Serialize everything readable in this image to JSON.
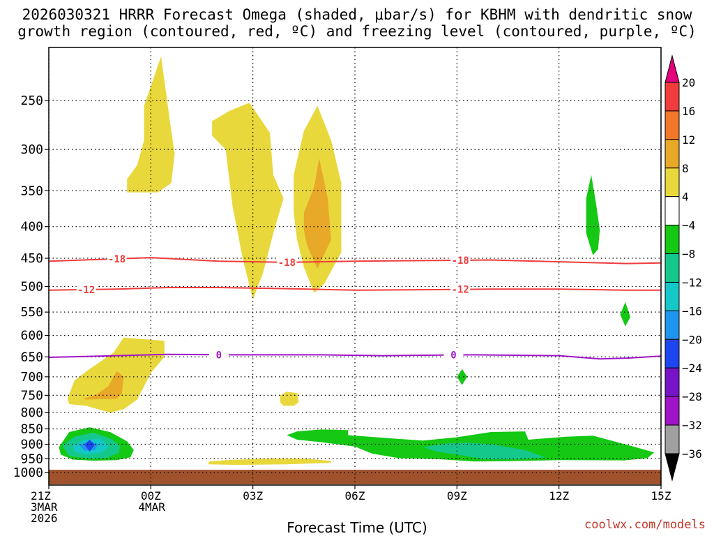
{
  "chart_data": {
    "type": "heatmap",
    "title_line1": "2026030321 HRRR Forecast Omega (shaded, μbar/s) for KBHM with dendritic snow",
    "title_line2": "growth region (contoured, red, ºC) and freezing level (contoured, purple, ºC)",
    "xlabel": "Forecast Time (UTC)",
    "credit": "coolwx.com/models",
    "x_ticks": [
      {
        "hour": 0,
        "line1": "21Z",
        "line2": "3MAR",
        "line3": "2026"
      },
      {
        "hour": 3,
        "line1": "00Z",
        "line2": "4MAR",
        "line3": ""
      },
      {
        "hour": 6,
        "line1": "03Z",
        "line2": "",
        "line3": ""
      },
      {
        "hour": 9,
        "line1": "06Z",
        "line2": "",
        "line3": ""
      },
      {
        "hour": 12,
        "line1": "09Z",
        "line2": "",
        "line3": ""
      },
      {
        "hour": 15,
        "line1": "12Z",
        "line2": "",
        "line3": ""
      },
      {
        "hour": 18,
        "line1": "15Z",
        "line2": "",
        "line3": ""
      }
    ],
    "y_ticks_hpa": [
      250,
      300,
      350,
      400,
      450,
      500,
      550,
      600,
      650,
      700,
      750,
      800,
      850,
      900,
      950,
      1000
    ],
    "xlim_hours": [
      0,
      18
    ],
    "ylim_hpa": [
      1000,
      200
    ],
    "colorbar": {
      "labels": [
        "20",
        "16",
        "12",
        "8",
        "4",
        "−4",
        "−8",
        "−12",
        "−16",
        "−20",
        "−24",
        "−28",
        "−32",
        "−36"
      ],
      "bins": [
        {
          "from": 20,
          "to": 24,
          "color": "#e4007c"
        },
        {
          "from": 16,
          "to": 20,
          "color": "#f03c3c"
        },
        {
          "from": 12,
          "to": 16,
          "color": "#f07828"
        },
        {
          "from": 8,
          "to": 12,
          "color": "#e8a828"
        },
        {
          "from": 4,
          "to": 8,
          "color": "#e8d83c"
        },
        {
          "from": -4,
          "to": 4,
          "color": "#ffffff"
        },
        {
          "from": -8,
          "to": -4,
          "color": "#14c814"
        },
        {
          "from": -12,
          "to": -8,
          "color": "#14c88c"
        },
        {
          "from": -16,
          "to": -12,
          "color": "#14c8c8"
        },
        {
          "from": -20,
          "to": -16,
          "color": "#1e96f0"
        },
        {
          "from": -24,
          "to": -20,
          "color": "#1e46f0"
        },
        {
          "from": -28,
          "to": -24,
          "color": "#7814c8"
        },
        {
          "from": -32,
          "to": -28,
          "color": "#a014c8"
        },
        {
          "from": -36,
          "to": -32,
          "color": "#a0a0a0"
        },
        {
          "from": -40,
          "to": -36,
          "color": "#000000"
        }
      ]
    },
    "omega_regions": [
      {
        "name": "upper-yellow-00z",
        "color": "#e8d83c",
        "points": [
          [
            2.3,
            350
          ],
          [
            2.3,
            335
          ],
          [
            2.6,
            318
          ],
          [
            2.8,
            290
          ],
          [
            2.8,
            255
          ],
          [
            3.3,
            212
          ],
          [
            3.6,
            280
          ],
          [
            3.7,
            305
          ],
          [
            3.6,
            340
          ],
          [
            3.2,
            352
          ],
          [
            2.3,
            352
          ]
        ]
      },
      {
        "name": "upper-yellow-03z",
        "color": "#e8d83c",
        "points": [
          [
            4.8,
            270
          ],
          [
            5.3,
            260
          ],
          [
            5.9,
            252
          ],
          [
            6.5,
            282
          ],
          [
            6.6,
            330
          ],
          [
            6.9,
            360
          ],
          [
            6.6,
            410
          ],
          [
            6.3,
            475
          ],
          [
            6.0,
            525
          ],
          [
            5.7,
            450
          ],
          [
            5.4,
            370
          ],
          [
            5.2,
            300
          ],
          [
            4.8,
            285
          ]
        ]
      },
      {
        "name": "upper-yellow-05z",
        "color": "#e8d83c",
        "points": [
          [
            7.2,
            330
          ],
          [
            7.5,
            280
          ],
          [
            7.9,
            255
          ],
          [
            8.3,
            290
          ],
          [
            8.6,
            340
          ],
          [
            8.6,
            440
          ],
          [
            8.1,
            495
          ],
          [
            7.8,
            512
          ],
          [
            7.5,
            465
          ],
          [
            7.3,
            420
          ],
          [
            7.2,
            380
          ]
        ]
      },
      {
        "name": "upper-orange-05z",
        "color": "#e8a828",
        "points": [
          [
            7.5,
            380
          ],
          [
            7.8,
            345
          ],
          [
            7.95,
            310
          ],
          [
            8.2,
            360
          ],
          [
            8.3,
            420
          ],
          [
            8.0,
            455
          ],
          [
            7.9,
            468
          ],
          [
            7.6,
            430
          ],
          [
            7.5,
            405
          ]
        ]
      },
      {
        "name": "green-12z-upper",
        "color": "#14c814",
        "points": [
          [
            15.8,
            360
          ],
          [
            15.95,
            330
          ],
          [
            16.1,
            370
          ],
          [
            16.2,
            405
          ],
          [
            16.15,
            435
          ],
          [
            16.0,
            445
          ],
          [
            15.8,
            410
          ]
        ]
      },
      {
        "name": "green-13z",
        "color": "#14c814",
        "points": [
          [
            16.8,
            555
          ],
          [
            16.95,
            530
          ],
          [
            17.1,
            560
          ],
          [
            16.95,
            580
          ]
        ]
      },
      {
        "name": "green-08z",
        "color": "#14c814",
        "points": [
          [
            12.0,
            700
          ],
          [
            12.15,
            680
          ],
          [
            12.3,
            700
          ],
          [
            12.15,
            722
          ]
        ]
      },
      {
        "name": "yellow-22z-low",
        "color": "#e8d83c",
        "points": [
          [
            0.55,
            760
          ],
          [
            0.75,
            710
          ],
          [
            1.2,
            680
          ],
          [
            1.9,
            640
          ],
          [
            2.2,
            605
          ],
          [
            3.4,
            612
          ],
          [
            3.4,
            650
          ],
          [
            3.0,
            690
          ],
          [
            2.8,
            725
          ],
          [
            2.6,
            762
          ],
          [
            2.2,
            790
          ],
          [
            1.8,
            800
          ],
          [
            1.1,
            780
          ],
          [
            0.6,
            775
          ]
        ]
      },
      {
        "name": "orange-22z-low",
        "color": "#e8a828",
        "points": [
          [
            1.0,
            760
          ],
          [
            1.4,
            748
          ],
          [
            1.75,
            725
          ],
          [
            2.0,
            685
          ],
          [
            2.2,
            700
          ],
          [
            2.15,
            745
          ],
          [
            2.0,
            760
          ],
          [
            1.1,
            762
          ]
        ]
      },
      {
        "name": "yellow-04z-low",
        "color": "#e8d83c",
        "points": [
          [
            6.8,
            750
          ],
          [
            7.0,
            740
          ],
          [
            7.3,
            744
          ],
          [
            7.35,
            770
          ],
          [
            7.2,
            780
          ],
          [
            6.9,
            780
          ],
          [
            6.8,
            770
          ]
        ]
      },
      {
        "name": "yellow-bottom",
        "color": "#e8d83c",
        "points": [
          [
            4.7,
            960
          ],
          [
            5.2,
            955
          ],
          [
            6.5,
            949
          ],
          [
            7.6,
            950
          ],
          [
            8.3,
            958
          ],
          [
            8.3,
            965
          ],
          [
            7.0,
            970
          ],
          [
            5.5,
            972
          ],
          [
            4.7,
            970
          ]
        ]
      },
      {
        "name": "green-low-band",
        "color": "#14c814",
        "points": [
          [
            7.0,
            870
          ],
          [
            7.3,
            858
          ],
          [
            8.0,
            852
          ],
          [
            8.8,
            854
          ],
          [
            8.8,
            870
          ],
          [
            10.0,
            880
          ],
          [
            11.0,
            888
          ],
          [
            12.0,
            877
          ],
          [
            13.0,
            860
          ],
          [
            14.0,
            858
          ],
          [
            14.1,
            885
          ],
          [
            15.2,
            875
          ],
          [
            16.0,
            872
          ],
          [
            17.1,
            905
          ],
          [
            17.8,
            928
          ],
          [
            17.6,
            948
          ],
          [
            16.9,
            956
          ],
          [
            15.0,
            955
          ],
          [
            13.5,
            959
          ],
          [
            12.5,
            960
          ],
          [
            11.4,
            951
          ],
          [
            10.3,
            948
          ],
          [
            9.5,
            932
          ],
          [
            9.0,
            908
          ],
          [
            8.0,
            893
          ],
          [
            7.3,
            885
          ]
        ]
      },
      {
        "name": "teal-09z-10z",
        "color": "#14c88c",
        "points": [
          [
            11.0,
            910
          ],
          [
            11.7,
            897
          ],
          [
            12.3,
            895
          ],
          [
            13.0,
            900
          ],
          [
            14.0,
            920
          ],
          [
            14.6,
            945
          ],
          [
            13.8,
            952
          ],
          [
            12.8,
            952
          ],
          [
            12.0,
            935
          ],
          [
            11.4,
            925
          ]
        ]
      },
      {
        "name": "green-22z-low",
        "color": "#14c814",
        "points": [
          [
            0.3,
            910
          ],
          [
            0.6,
            860
          ],
          [
            1.2,
            845
          ],
          [
            1.8,
            860
          ],
          [
            2.3,
            890
          ],
          [
            2.5,
            920
          ],
          [
            2.4,
            945
          ],
          [
            2.0,
            955
          ],
          [
            1.3,
            957
          ],
          [
            0.7,
            953
          ],
          [
            0.35,
            935
          ]
        ]
      },
      {
        "name": "teal-22z-low",
        "color": "#14c88c",
        "points": [
          [
            0.4,
            905
          ],
          [
            0.75,
            875
          ],
          [
            1.3,
            862
          ],
          [
            1.8,
            880
          ],
          [
            2.1,
            905
          ],
          [
            2.05,
            930
          ],
          [
            1.7,
            947
          ],
          [
            1.2,
            950
          ],
          [
            0.6,
            940
          ]
        ]
      },
      {
        "name": "cyan-22z-low",
        "color": "#14c8c8",
        "points": [
          [
            0.7,
            905
          ],
          [
            1.05,
            885
          ],
          [
            1.5,
            882
          ],
          [
            1.75,
            905
          ],
          [
            1.6,
            927
          ],
          [
            1.1,
            935
          ],
          [
            0.75,
            925
          ]
        ]
      },
      {
        "name": "lightblue-22z-low",
        "color": "#1e96f0",
        "points": [
          [
            0.9,
            903
          ],
          [
            1.2,
            889
          ],
          [
            1.45,
            900
          ],
          [
            1.35,
            920
          ],
          [
            1.05,
            922
          ]
        ]
      },
      {
        "name": "blue-22z-low",
        "color": "#1e46f0",
        "points": [
          [
            1.05,
            902
          ],
          [
            1.2,
            885
          ],
          [
            1.35,
            902
          ],
          [
            1.2,
            925
          ]
        ]
      }
    ],
    "temperature_contours": [
      {
        "label": "-18",
        "color": "#f03c3c",
        "label_hours": [
          2.0,
          7.0,
          12.1
        ],
        "points": [
          [
            0,
            455
          ],
          [
            1.5,
            452
          ],
          [
            3.0,
            449
          ],
          [
            5.0,
            455
          ],
          [
            7.0,
            457
          ],
          [
            9.0,
            455
          ],
          [
            11.0,
            454
          ],
          [
            13.0,
            453
          ],
          [
            15.0,
            456
          ],
          [
            17.0,
            459
          ],
          [
            18.0,
            458
          ]
        ]
      },
      {
        "label": "-12",
        "color": "#f03c3c",
        "label_hours": [
          1.1,
          12.1
        ],
        "points": [
          [
            0,
            507
          ],
          [
            2.0,
            505
          ],
          [
            3.5,
            502
          ],
          [
            5.0,
            502
          ],
          [
            7.0,
            504
          ],
          [
            9.0,
            507
          ],
          [
            11.0,
            506
          ],
          [
            13.0,
            505
          ],
          [
            15.0,
            505
          ],
          [
            17.0,
            507
          ],
          [
            18.0,
            507
          ]
        ]
      },
      {
        "label": "0",
        "color": "#a014c8",
        "label_hours": [
          5.0,
          11.9
        ],
        "points": [
          [
            0,
            651
          ],
          [
            2.0,
            647
          ],
          [
            3.5,
            644
          ],
          [
            5.5,
            645
          ],
          [
            8.0,
            645
          ],
          [
            9.8,
            647
          ],
          [
            11.0,
            646
          ],
          [
            12.5,
            645
          ],
          [
            15.0,
            647
          ],
          [
            16.2,
            655
          ],
          [
            17.0,
            653
          ],
          [
            18.0,
            648
          ]
        ]
      }
    ],
    "ground": {
      "from_hpa": 990,
      "to_hpa": 1045,
      "color": "#a0522d"
    }
  }
}
